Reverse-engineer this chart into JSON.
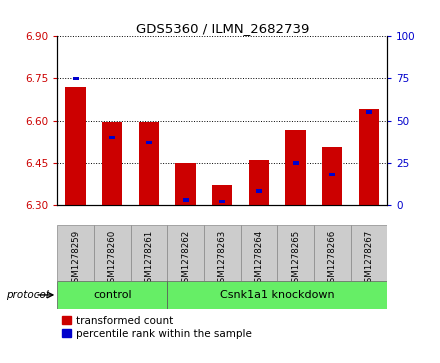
{
  "title": "GDS5360 / ILMN_2682739",
  "samples": [
    "GSM1278259",
    "GSM1278260",
    "GSM1278261",
    "GSM1278262",
    "GSM1278263",
    "GSM1278264",
    "GSM1278265",
    "GSM1278266",
    "GSM1278267"
  ],
  "red_values": [
    6.72,
    6.595,
    6.595,
    6.45,
    6.37,
    6.46,
    6.565,
    6.505,
    6.64
  ],
  "blue_values": [
    75,
    40,
    37,
    3,
    2,
    8,
    25,
    18,
    55
  ],
  "y_min": 6.3,
  "y_max": 6.9,
  "y_ticks": [
    6.3,
    6.45,
    6.6,
    6.75,
    6.9
  ],
  "y2_ticks": [
    0,
    25,
    50,
    75,
    100
  ],
  "bar_width": 0.55,
  "red_color": "#cc0000",
  "blue_color": "#0000cc",
  "protocol_labels": [
    "control",
    "Csnk1a1 knockdown"
  ],
  "protocol_color": "#66ee66",
  "sample_bg_color": "#cccccc",
  "legend_red": "transformed count",
  "legend_blue": "percentile rank within the sample"
}
